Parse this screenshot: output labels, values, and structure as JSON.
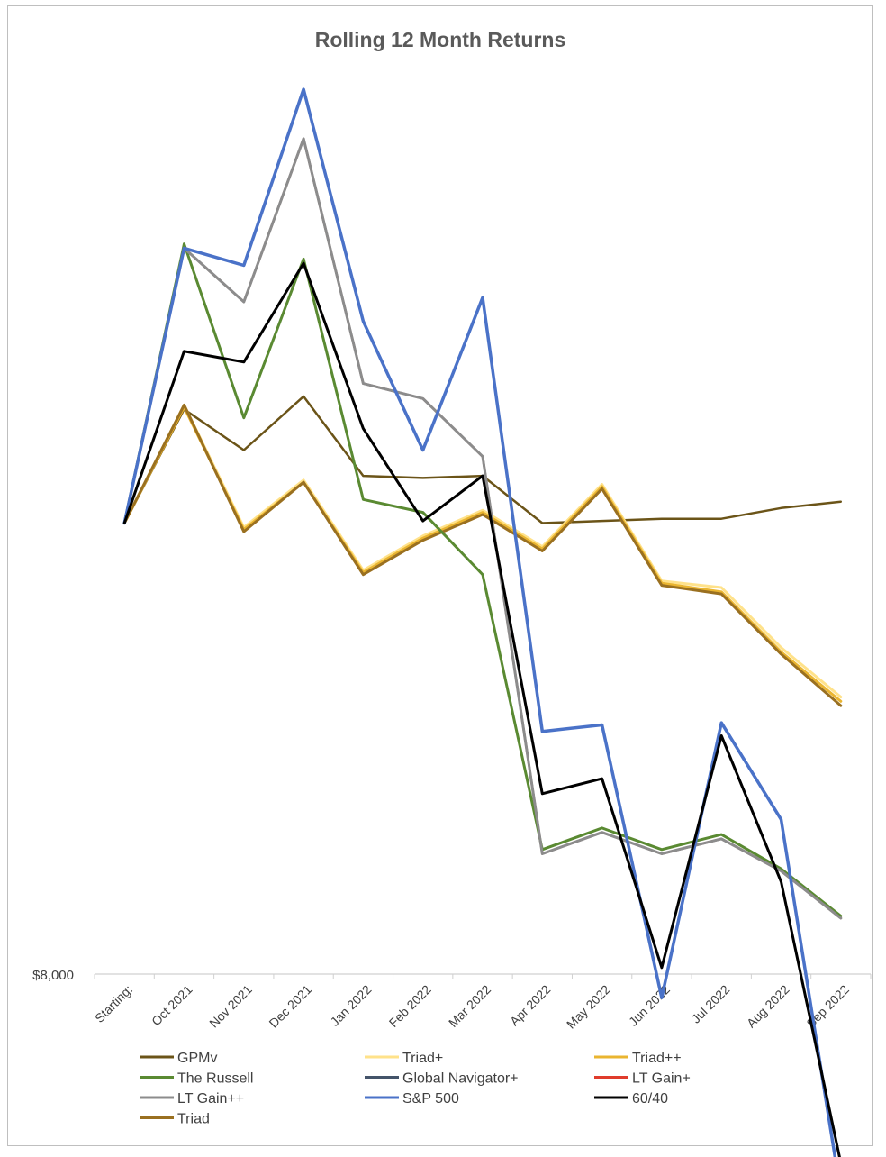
{
  "chart_data": {
    "type": "line",
    "title": "Rolling 12 Month Returns",
    "xlabel": "",
    "ylabel": "",
    "y_tick_labels": [
      "$8,000"
    ],
    "categories": [
      "Starting:",
      "Oct 2021",
      "Nov 2021",
      "Dec 2021",
      "Jan 2022",
      "Feb 2022",
      "Mar 2022",
      "Apr 2022",
      "May 2022",
      "Jun 2022",
      "Jul 2022",
      "Aug 2022",
      "Sep 2022"
    ],
    "ylim": [
      8000,
      12200
    ],
    "grid": false,
    "legend_position": "bottom",
    "series": [
      {
        "name": "GPMv",
        "color": "#6b5418",
        "width": 2.5,
        "values": [
          10100,
          10630,
          10440,
          10690,
          10320,
          10310,
          10320,
          10100,
          10110,
          10120,
          10120,
          10170,
          10200
        ]
      },
      {
        "name": "Triad+",
        "color": "#ffe28a",
        "width": 3,
        "values": [
          10100,
          10650,
          10080,
          10300,
          9880,
          10040,
          10160,
          9990,
          10280,
          9830,
          9800,
          9520,
          9290
        ]
      },
      {
        "name": "Triad++",
        "color": "#eab530",
        "width": 3,
        "values": [
          10100,
          10640,
          10070,
          10290,
          9870,
          10030,
          10150,
          9980,
          10270,
          9820,
          9780,
          9500,
          9270
        ]
      },
      {
        "name": "The Russell",
        "color": "#5a8a32",
        "width": 3,
        "values": [
          10100,
          11400,
          10590,
          11330,
          10210,
          10150,
          9860,
          8580,
          8680,
          8580,
          8650,
          8490,
          8270
        ]
      },
      {
        "name": "Global Navigator+",
        "color": "#44546a",
        "width": 2.5,
        "values": [
          10100,
          11380,
          11130,
          11890,
          10750,
          10680,
          10410,
          8560,
          8660,
          8560,
          8630,
          8480,
          8260
        ]
      },
      {
        "name": "LT Gain+",
        "color": "#e03c2c",
        "width": 2.5,
        "values": [
          10100,
          11380,
          11130,
          11890,
          10750,
          10680,
          10410,
          8560,
          8660,
          8560,
          8630,
          8480,
          8260
        ]
      },
      {
        "name": "LT Gain++",
        "color": "#8c8c8c",
        "width": 3,
        "values": [
          10100,
          11380,
          11130,
          11890,
          10750,
          10680,
          10410,
          8560,
          8660,
          8560,
          8630,
          8480,
          8260
        ]
      },
      {
        "name": "S&P 500",
        "color": "#4a72c8",
        "width": 3.5,
        "values": [
          10100,
          11380,
          11300,
          12120,
          11040,
          10440,
          11150,
          9130,
          9160,
          7890,
          9170,
          8720,
          6980
        ]
      },
      {
        "name": "60/40",
        "color": "#000000",
        "width": 3,
        "values": [
          10100,
          10900,
          10850,
          11310,
          10540,
          10110,
          10320,
          8840,
          8910,
          8030,
          9110,
          8430,
          7120
        ]
      },
      {
        "name": "Triad",
        "color": "#9a7020",
        "width": 3,
        "values": [
          10100,
          10650,
          10060,
          10290,
          9860,
          10020,
          10140,
          9970,
          10260,
          9810,
          9770,
          9490,
          9250
        ]
      }
    ]
  }
}
